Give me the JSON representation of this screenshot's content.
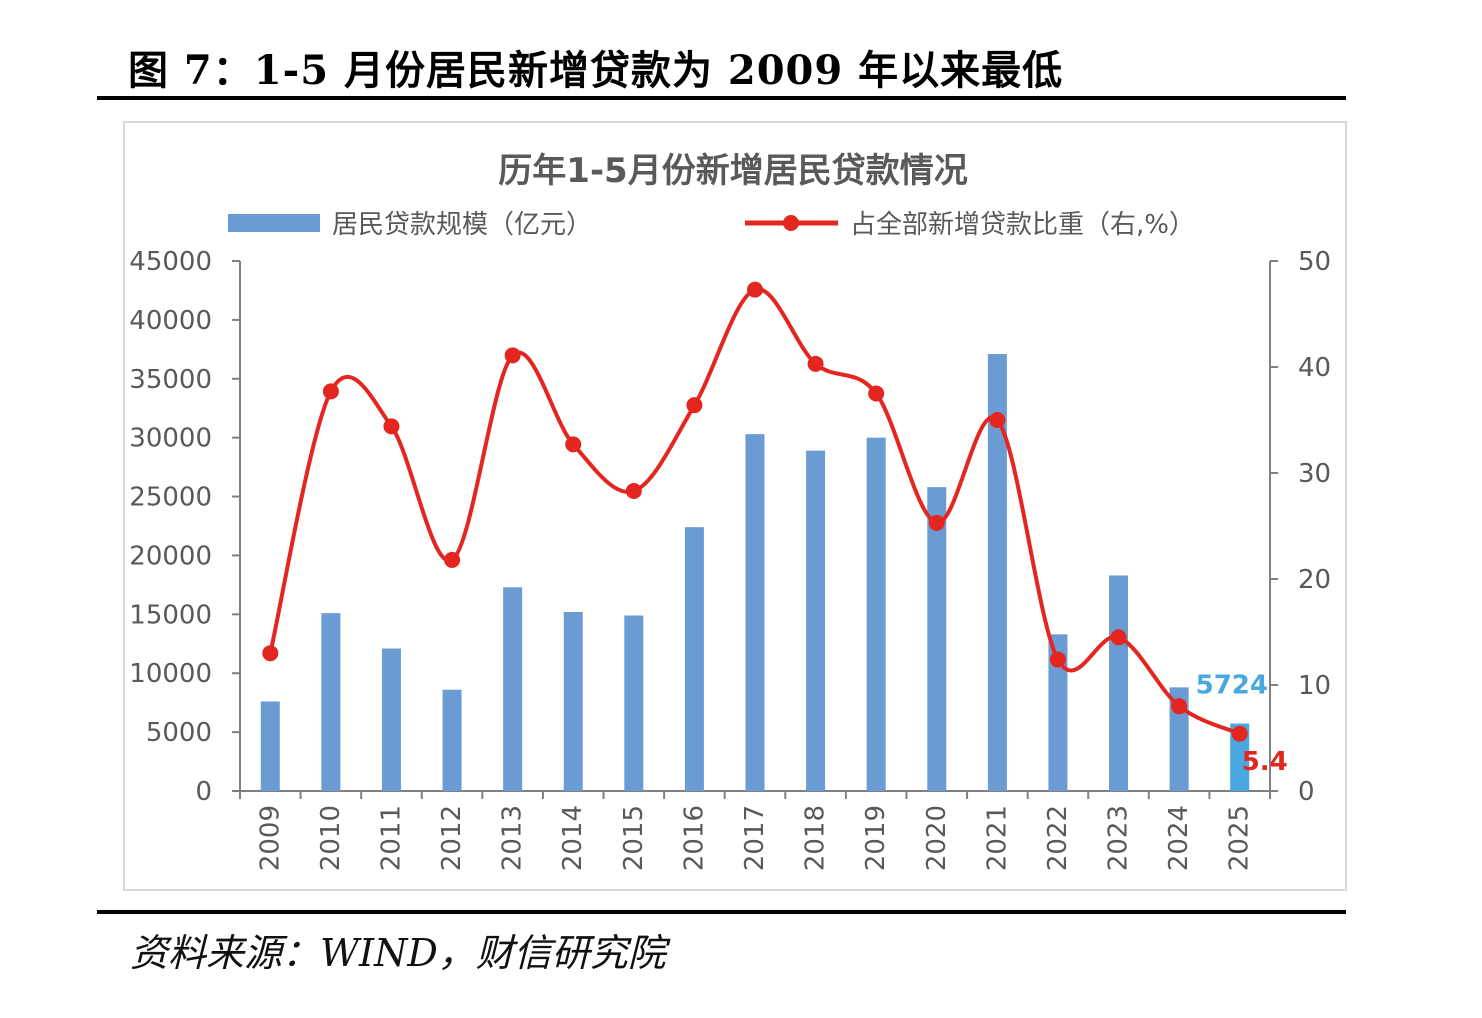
{
  "figure": {
    "title": "图 7：1-5 月份居民新增贷款为 2009 年以来最低",
    "source": "资料来源：WIND，财信研究院"
  },
  "chart_data": {
    "type": "bar+line",
    "title": "历年1-5月份新增居民贷款情况",
    "categories": [
      "2009",
      "2010",
      "2011",
      "2012",
      "2013",
      "2014",
      "2015",
      "2016",
      "2017",
      "2018",
      "2019",
      "2020",
      "2021",
      "2022",
      "2023",
      "2024",
      "2025"
    ],
    "series": [
      {
        "name": "居民贷款规模（亿元）",
        "type": "bar",
        "axis": "left",
        "color": "#6a9bd3",
        "highlight_color": "#4aa8e0",
        "values": [
          7600,
          15100,
          12100,
          8600,
          17300,
          15200,
          14900,
          22400,
          30300,
          28900,
          30000,
          25800,
          37100,
          13300,
          18300,
          8800,
          5724
        ]
      },
      {
        "name": "占全部新增贷款比重（右,%）",
        "type": "line",
        "axis": "right",
        "color": "#e3261f",
        "values": [
          13.0,
          37.7,
          34.4,
          21.8,
          41.1,
          32.7,
          28.3,
          36.4,
          47.3,
          40.3,
          37.5,
          25.3,
          35.0,
          12.4,
          14.5,
          8.0,
          5.4
        ]
      }
    ],
    "annotations": [
      {
        "text": "5724",
        "series": 0,
        "category": "2025",
        "color": "#4aa8e0"
      },
      {
        "text": "5.4",
        "series": 1,
        "category": "2025",
        "color": "#e3261f"
      }
    ],
    "left_axis": {
      "range": [
        0,
        45000
      ],
      "ticks": [
        "0",
        "5000",
        "10000",
        "15000",
        "20000",
        "25000",
        "30000",
        "35000",
        "40000",
        "45000"
      ]
    },
    "right_axis": {
      "range": [
        0,
        50
      ],
      "ticks": [
        "0",
        "10",
        "20",
        "30",
        "40",
        "50"
      ]
    },
    "legend": "top",
    "grid": false
  }
}
